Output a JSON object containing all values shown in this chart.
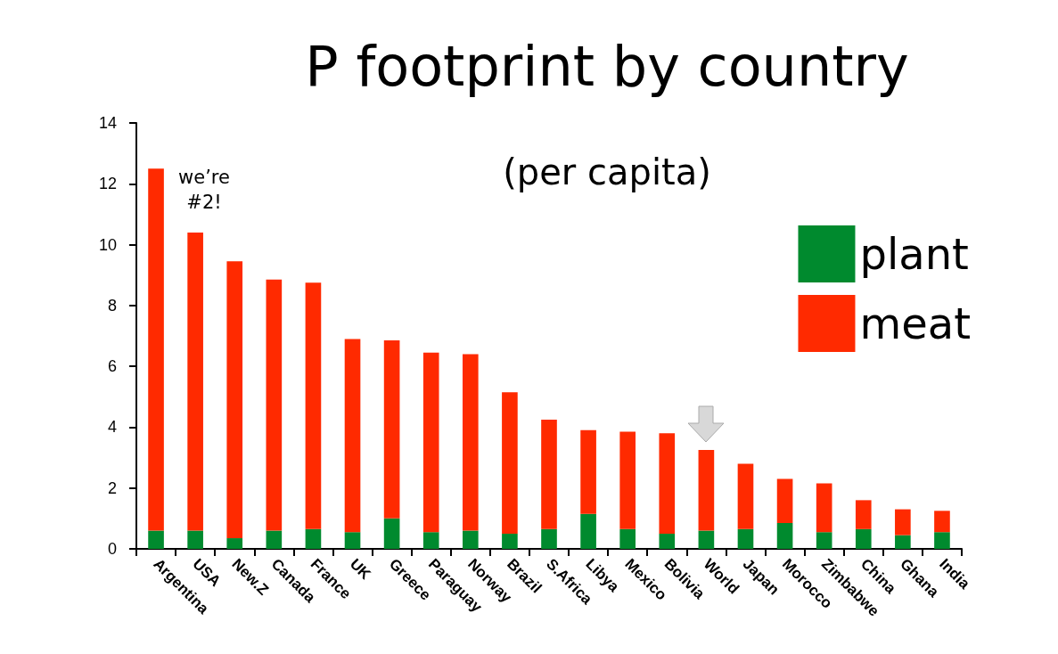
{
  "chart_data": {
    "type": "bar",
    "title": "P footprint by country",
    "subtitle": "(per capita)",
    "categories": [
      "Argentina",
      "USA",
      "New.Z",
      "Canada",
      "France",
      "UK",
      "Greece",
      "Paraguay",
      "Norway",
      "Brazil",
      "S.Africa",
      "Libya",
      "Mexico",
      "Bolivia",
      "World",
      "Japan",
      "Morocco",
      "Zimbabwe",
      "China",
      "Ghana",
      "India"
    ],
    "stacked": true,
    "series": [
      {
        "name": "plant",
        "color": "#008a2e",
        "values": [
          0.6,
          0.6,
          0.35,
          0.6,
          0.65,
          0.55,
          1.0,
          0.55,
          0.6,
          0.5,
          0.65,
          1.15,
          0.65,
          0.5,
          0.6,
          0.65,
          0.85,
          0.55,
          0.65,
          0.45,
          0.55
        ]
      },
      {
        "name": "meat",
        "color": "#ff2a00",
        "values": [
          11.9,
          9.8,
          9.1,
          8.25,
          8.1,
          6.35,
          5.85,
          5.9,
          5.8,
          4.65,
          3.6,
          2.75,
          3.2,
          3.3,
          2.65,
          2.15,
          1.45,
          1.6,
          0.95,
          0.85,
          0.7
        ]
      }
    ],
    "ylim": [
      0,
      14
    ],
    "yticks": [
      0,
      2,
      4,
      6,
      8,
      10,
      12,
      14
    ],
    "grid": false,
    "legend": "top right",
    "annotations": [
      "we’re #2!"
    ]
  }
}
